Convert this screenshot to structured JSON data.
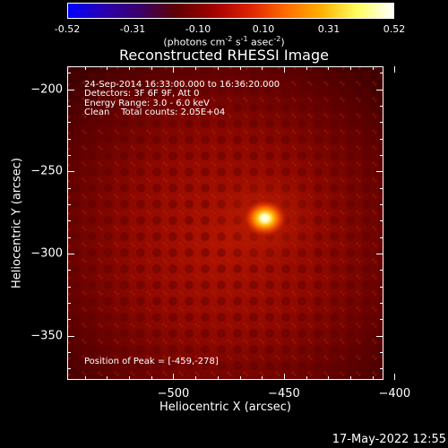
{
  "colorbar": {
    "ticks": [
      "-0.52",
      "-0.31",
      "-0.10",
      "0.10",
      "0.31",
      "0.52"
    ],
    "unit_prefix": "(photons cm",
    "unit_exp1": "-2",
    "unit_mid1": " s",
    "unit_exp2": "-1",
    "unit_mid2": " asec",
    "unit_exp3": "-2",
    "unit_suffix": ")"
  },
  "plot": {
    "title": "Reconstructed RHESSI Image",
    "xlabel": "Heliocentric X (arcsec)",
    "ylabel": "Heliocentric Y (arcsec)",
    "xticks": [
      "-500",
      "-450",
      "-400"
    ],
    "yticks": [
      "-200",
      "-250",
      "-300",
      "-350"
    ],
    "xlim": [
      -548,
      -405
    ],
    "ylim": [
      -377,
      -186
    ],
    "source_peak": [
      -459,
      -278
    ],
    "annotations": [
      "24-Sep-2014 16:33:00.000 to 16:36:20.000",
      "Detectors: 3F 6F 9F, Att 0",
      "Energy Range: 3.0 - 6.0 keV",
      "Clean    Total counts: 2.05E+04"
    ],
    "peak_text": "Position of Peak = [-459,-278]"
  },
  "footer": {
    "datestamp": "17-May-2022 12:55"
  },
  "colors": {
    "colormap": [
      "#0000ff",
      "#2a00b0",
      "#3b0068",
      "#600000",
      "#a00000",
      "#dd2000",
      "#ff6a00",
      "#ffb000",
      "#ffff60",
      "#ffffff"
    ]
  }
}
